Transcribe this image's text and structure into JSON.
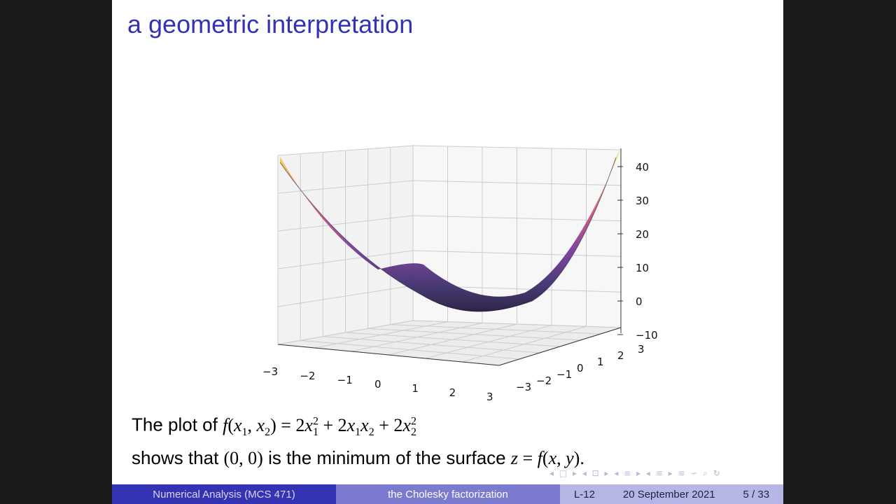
{
  "slide": {
    "title": "a geometric interpretation",
    "caption_line1_prefix": "The plot of ",
    "caption_line2_a": "shows that ",
    "caption_line2_point": "(0, 0)",
    "caption_line2_b": " is the minimum of the surface ",
    "caption_line2_eq": "z = f(x, y)."
  },
  "nav_symbols": "◂ □ ▸ ◂ ⊡ ▸ ◂ ≡ ▸ ◂ ≡ ▸   ≡   ∽ ⌕ ↻",
  "footer": {
    "course": "Numerical Analysis  (MCS 471)",
    "topic": "the Cholesky factorization",
    "lecture": "L-12",
    "date": "20 September 2021",
    "page": "5 / 33"
  },
  "chart_data": {
    "type": "surface",
    "function": "f(x1, x2) = 2x1^2 + 2x1x2 + 2x2^2",
    "x_ticks": [
      "−3",
      "−2",
      "−1",
      "0",
      "1",
      "2",
      "3"
    ],
    "y_ticks": [
      "−3",
      "−2",
      "−1",
      "0",
      "1",
      "2",
      "3"
    ],
    "z_ticks": [
      "−10",
      "0",
      "10",
      "20",
      "30",
      "40"
    ],
    "xlim": [
      -3,
      3
    ],
    "ylim": [
      -3,
      3
    ],
    "zlim": [
      -10,
      45
    ],
    "colormap": "plasma",
    "grid": true
  }
}
